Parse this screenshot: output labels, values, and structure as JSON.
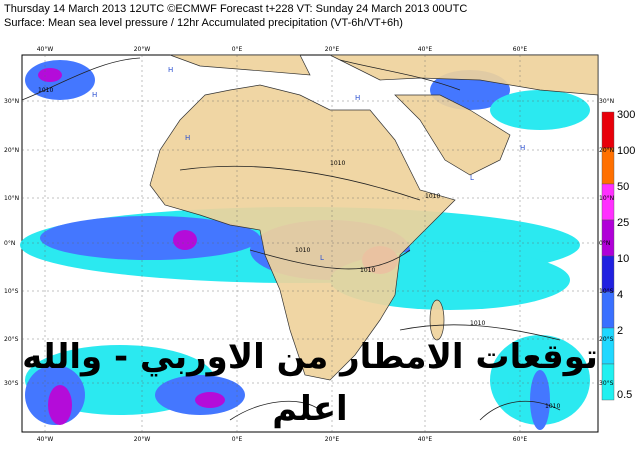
{
  "header": {
    "lines": [
      "Thursday 14 March 2013 12UTC ©ECMWF Forecast t+228 VT: Sunday 24 March 2013 00UTC",
      "Surface: Mean sea level pressure / 12hr Accumulated precipitation (VT-6h/VT+6h)"
    ]
  },
  "map": {
    "lon_labels": [
      "40°W",
      "20°W",
      "0°E",
      "20°E",
      "40°E",
      "60°E"
    ],
    "lat_labels": [
      "30°N",
      "20°N",
      "10°N",
      "0°N",
      "10°S",
      "20°S",
      "30°S"
    ],
    "isobar_labels": [
      "1010",
      "1010",
      "1010",
      "1010",
      "1010",
      "1010",
      "1010"
    ],
    "pressure_centers": [
      "H",
      "H",
      "H",
      "L",
      "L",
      "H",
      "H"
    ]
  },
  "colorbar": {
    "levels": [
      {
        "label": "300",
        "color": "#e8000a"
      },
      {
        "label": "100",
        "color": "#ff7000"
      },
      {
        "label": "50",
        "color": "#ff30ff"
      },
      {
        "label": "25",
        "color": "#b000d8"
      },
      {
        "label": "10",
        "color": "#2020e0"
      },
      {
        "label": "4",
        "color": "#3a70ff"
      },
      {
        "label": "2",
        "color": "#20d8ff"
      },
      {
        "label": "0.5",
        "color": "#20f0f0"
      }
    ]
  },
  "overlay": {
    "lines": [
      "توقعات الامطار من الاوربي - والله",
      "اعلم"
    ]
  }
}
